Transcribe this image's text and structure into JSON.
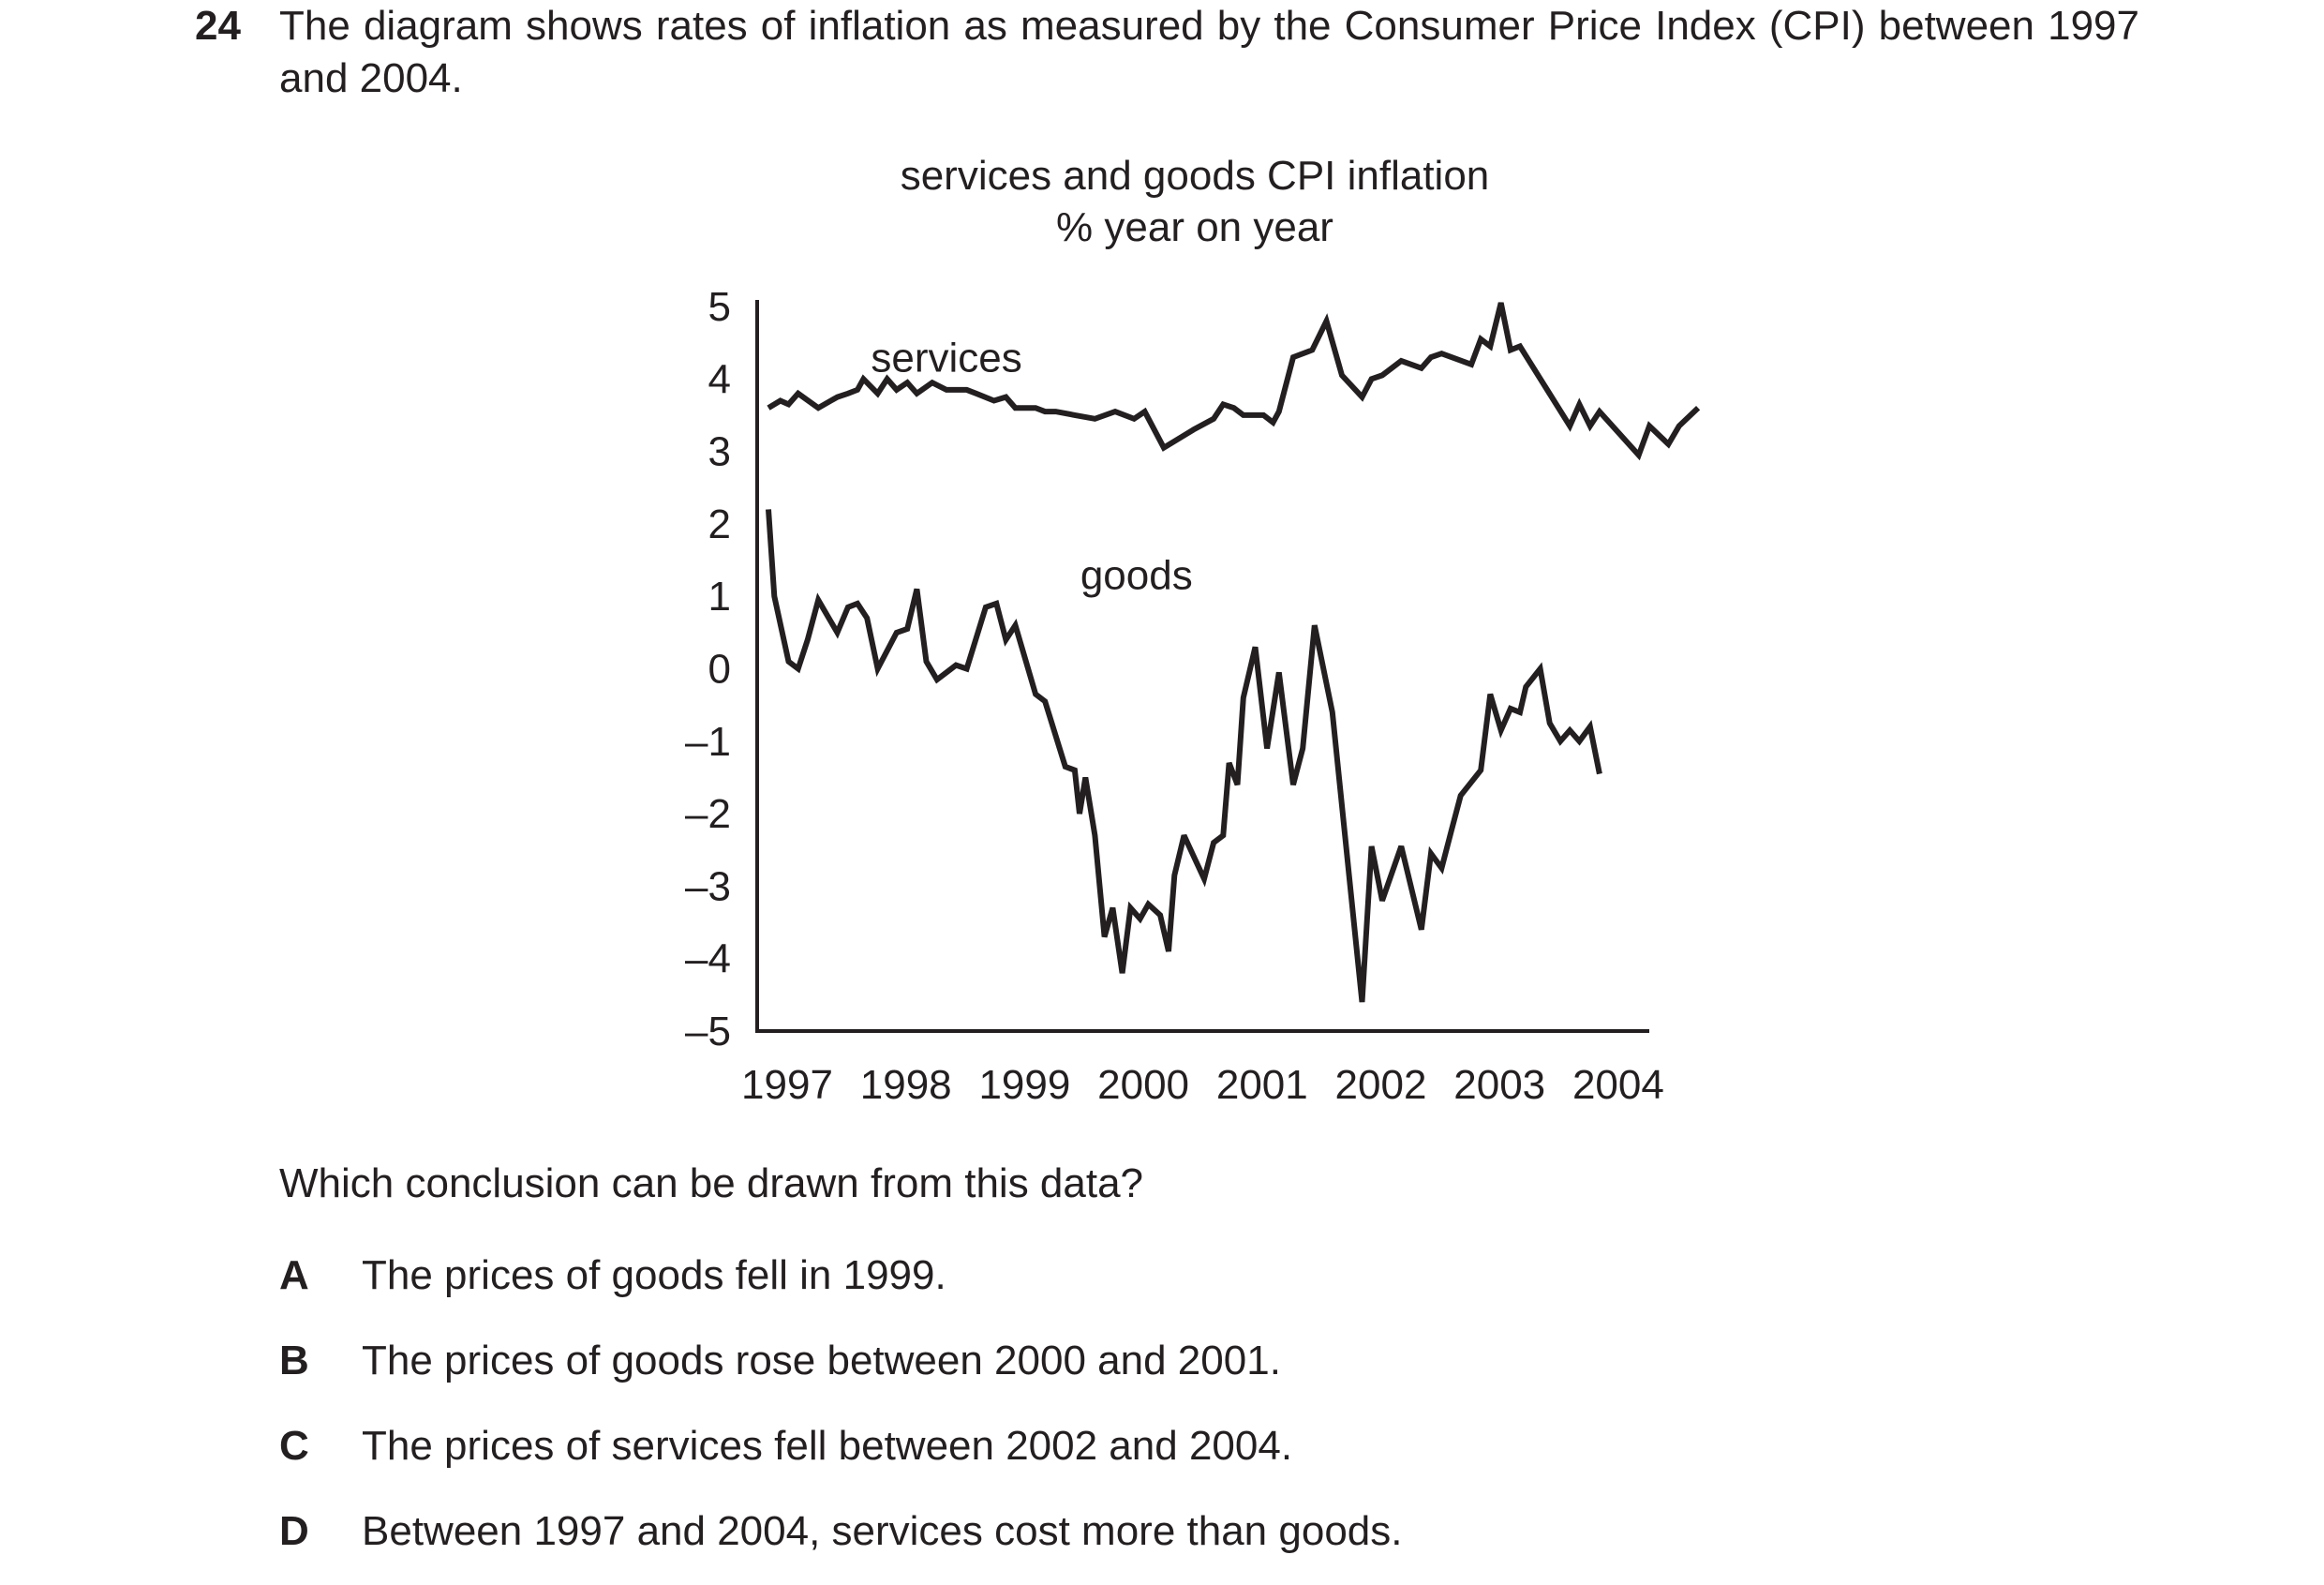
{
  "question": {
    "number": "24",
    "stem": "The diagram shows rates of inflation as measured by the Consumer Price Index (CPI) between 1997 and 2004.",
    "prompt": "Which conclusion can be drawn from this data?",
    "options": [
      {
        "letter": "A",
        "text": "The prices of goods fell in 1999."
      },
      {
        "letter": "B",
        "text": "The prices of goods rose between 2000 and 2001."
      },
      {
        "letter": "C",
        "text": "The prices of services fell between 2002 and 2004."
      },
      {
        "letter": "D",
        "text": "Between 1997 and 2004, services cost more than goods."
      }
    ]
  },
  "chart_data": {
    "type": "line",
    "title": "services and goods CPI inflation",
    "subtitle": "% year on year",
    "xlabel": "",
    "ylabel": "",
    "xlim": [
      1997,
      2004.3
    ],
    "ylim": [
      -5,
      5
    ],
    "yticks": [
      5,
      4,
      3,
      2,
      1,
      0,
      -1,
      -2,
      -3,
      -4,
      -5
    ],
    "ytick_labels": [
      "5",
      "4",
      "3",
      "2",
      "1",
      "0",
      "–1",
      "–2",
      "–3",
      "–4",
      "–5"
    ],
    "xticks": [
      1997,
      1998,
      1999,
      2000,
      2001,
      2002,
      2003,
      2004
    ],
    "xtick_labels": [
      "1997",
      "1998",
      "1999",
      "2000",
      "2001",
      "2002",
      "2003",
      "2004"
    ],
    "grid": false,
    "legend": "none",
    "line_color": "#231f20",
    "series": [
      {
        "name": "services",
        "label_pos": [
          1998.5,
          4.1
        ],
        "points": [
          [
            1997.0,
            3.6
          ],
          [
            1997.1,
            3.7
          ],
          [
            1997.17,
            3.65
          ],
          [
            1997.25,
            3.8
          ],
          [
            1997.42,
            3.6
          ],
          [
            1997.58,
            3.75
          ],
          [
            1997.67,
            3.8
          ],
          [
            1997.75,
            3.85
          ],
          [
            1997.8,
            4.0
          ],
          [
            1997.92,
            3.8
          ],
          [
            1998.0,
            4.0
          ],
          [
            1998.08,
            3.85
          ],
          [
            1998.17,
            3.95
          ],
          [
            1998.25,
            3.8
          ],
          [
            1998.38,
            3.95
          ],
          [
            1998.5,
            3.85
          ],
          [
            1998.67,
            3.85
          ],
          [
            1998.75,
            3.8
          ],
          [
            1998.9,
            3.7
          ],
          [
            1999.0,
            3.75
          ],
          [
            1999.08,
            3.6
          ],
          [
            1999.25,
            3.6
          ],
          [
            1999.33,
            3.55
          ],
          [
            1999.42,
            3.55
          ],
          [
            1999.58,
            3.5
          ],
          [
            1999.75,
            3.45
          ],
          [
            1999.92,
            3.55
          ],
          [
            2000.08,
            3.45
          ],
          [
            2000.17,
            3.55
          ],
          [
            2000.33,
            3.05
          ],
          [
            2000.58,
            3.3
          ],
          [
            2000.75,
            3.45
          ],
          [
            2000.83,
            3.65
          ],
          [
            2000.92,
            3.6
          ],
          [
            2001.0,
            3.5
          ],
          [
            2001.08,
            3.5
          ],
          [
            2001.17,
            3.5
          ],
          [
            2001.25,
            3.4
          ],
          [
            2001.3,
            3.55
          ],
          [
            2001.42,
            4.3
          ],
          [
            2001.58,
            4.4
          ],
          [
            2001.7,
            4.8
          ],
          [
            2001.83,
            4.05
          ],
          [
            2002.0,
            3.75
          ],
          [
            2002.08,
            4.0
          ],
          [
            2002.17,
            4.05
          ],
          [
            2002.33,
            4.25
          ],
          [
            2002.5,
            4.15
          ],
          [
            2002.58,
            4.3
          ],
          [
            2002.67,
            4.35
          ],
          [
            2002.92,
            4.2
          ],
          [
            2003.0,
            4.55
          ],
          [
            2003.08,
            4.45
          ],
          [
            2003.17,
            5.05
          ],
          [
            2003.25,
            4.4
          ],
          [
            2003.33,
            4.45
          ],
          [
            2003.75,
            3.35
          ],
          [
            2003.83,
            3.65
          ],
          [
            2003.92,
            3.35
          ],
          [
            2004.0,
            3.55
          ],
          [
            2004.33,
            2.95
          ],
          [
            2004.42,
            3.35
          ],
          [
            2004.58,
            3.1
          ],
          [
            2004.67,
            3.35
          ],
          [
            2004.83,
            3.6
          ]
        ]
      },
      {
        "name": "goods",
        "label_pos": [
          2000.1,
          1.1
        ],
        "points": [
          [
            1997.0,
            2.2
          ],
          [
            1997.05,
            1.0
          ],
          [
            1997.17,
            0.1
          ],
          [
            1997.25,
            0.0
          ],
          [
            1997.33,
            0.4
          ],
          [
            1997.42,
            0.95
          ],
          [
            1997.58,
            0.5
          ],
          [
            1997.67,
            0.85
          ],
          [
            1997.75,
            0.9
          ],
          [
            1997.83,
            0.7
          ],
          [
            1997.92,
            0.0
          ],
          [
            1998.08,
            0.5
          ],
          [
            1998.17,
            0.55
          ],
          [
            1998.25,
            1.1
          ],
          [
            1998.33,
            0.1
          ],
          [
            1998.42,
            -0.15
          ],
          [
            1998.58,
            0.05
          ],
          [
            1998.67,
            0.0
          ],
          [
            1998.83,
            0.85
          ],
          [
            1998.92,
            0.9
          ],
          [
            1999.0,
            0.4
          ],
          [
            1999.08,
            0.6
          ],
          [
            1999.25,
            -0.35
          ],
          [
            1999.33,
            -0.45
          ],
          [
            1999.5,
            -1.35
          ],
          [
            1999.58,
            -1.4
          ],
          [
            1999.62,
            -2.0
          ],
          [
            1999.67,
            -1.5
          ],
          [
            1999.75,
            -2.3
          ],
          [
            1999.83,
            -3.7
          ],
          [
            1999.9,
            -3.3
          ],
          [
            1999.98,
            -4.2
          ],
          [
            2000.05,
            -3.3
          ],
          [
            2000.13,
            -3.45
          ],
          [
            2000.2,
            -3.25
          ],
          [
            2000.3,
            -3.4
          ],
          [
            2000.37,
            -3.9
          ],
          [
            2000.42,
            -2.85
          ],
          [
            2000.5,
            -2.3
          ],
          [
            2000.67,
            -2.9
          ],
          [
            2000.75,
            -2.4
          ],
          [
            2000.83,
            -2.3
          ],
          [
            2000.88,
            -1.3
          ],
          [
            2000.95,
            -1.6
          ],
          [
            2001.0,
            -0.4
          ],
          [
            2001.1,
            0.3
          ],
          [
            2001.2,
            -1.1
          ],
          [
            2001.3,
            -0.05
          ],
          [
            2001.42,
            -1.6
          ],
          [
            2001.5,
            -1.1
          ],
          [
            2001.6,
            0.6
          ],
          [
            2001.75,
            -0.6
          ],
          [
            2002.0,
            -4.6
          ],
          [
            2002.08,
            -2.45
          ],
          [
            2002.17,
            -3.2
          ],
          [
            2002.33,
            -2.45
          ],
          [
            2002.5,
            -3.6
          ],
          [
            2002.58,
            -2.55
          ],
          [
            2002.67,
            -2.75
          ],
          [
            2002.75,
            -2.25
          ],
          [
            2002.83,
            -1.75
          ],
          [
            2003.0,
            -1.4
          ],
          [
            2003.08,
            -0.35
          ],
          [
            2003.17,
            -0.85
          ],
          [
            2003.25,
            -0.55
          ],
          [
            2003.33,
            -0.6
          ],
          [
            2003.38,
            -0.25
          ],
          [
            2003.5,
            0.0
          ],
          [
            2003.58,
            -0.75
          ],
          [
            2003.67,
            -1.0
          ],
          [
            2003.75,
            -0.85
          ],
          [
            2003.83,
            -1.0
          ],
          [
            2003.92,
            -0.8
          ],
          [
            2004.0,
            -1.45
          ]
        ]
      }
    ]
  }
}
